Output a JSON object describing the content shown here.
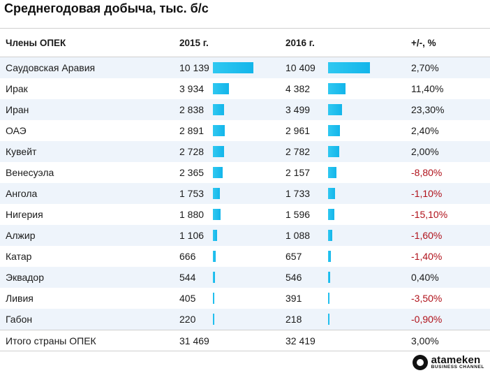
{
  "chart_data": {
    "type": "table",
    "title": "Среднегодовая добыча, тыс. б/с",
    "columns": [
      "Члены ОПЕК",
      "2015 г.",
      "2016 г.",
      "+/-, %"
    ],
    "rows": [
      {
        "country": "Саудовская Аравия",
        "y2015": "10 139",
        "v2015": 10139,
        "y2016": "10 409",
        "v2016": 10409,
        "change": "2,70%",
        "negative": false
      },
      {
        "country": "Ирак",
        "y2015": "3 934",
        "v2015": 3934,
        "y2016": "4 382",
        "v2016": 4382,
        "change": "11,40%",
        "negative": false
      },
      {
        "country": "Иран",
        "y2015": "2 838",
        "v2015": 2838,
        "y2016": "3 499",
        "v2016": 3499,
        "change": "23,30%",
        "negative": false
      },
      {
        "country": "ОАЭ",
        "y2015": "2 891",
        "v2015": 2891,
        "y2016": "2 961",
        "v2016": 2961,
        "change": "2,40%",
        "negative": false
      },
      {
        "country": "Кувейт",
        "y2015": "2 728",
        "v2015": 2728,
        "y2016": "2 782",
        "v2016": 2782,
        "change": "2,00%",
        "negative": false
      },
      {
        "country": "Венесуэла",
        "y2015": "2 365",
        "v2015": 2365,
        "y2016": "2 157",
        "v2016": 2157,
        "change": "-8,80%",
        "negative": true
      },
      {
        "country": "Ангола",
        "y2015": "1 753",
        "v2015": 1753,
        "y2016": "1 733",
        "v2016": 1733,
        "change": "-1,10%",
        "negative": true
      },
      {
        "country": "Нигерия",
        "y2015": "1 880",
        "v2015": 1880,
        "y2016": "1 596",
        "v2016": 1596,
        "change": "-15,10%",
        "negative": true
      },
      {
        "country": "Алжир",
        "y2015": "1 106",
        "v2015": 1106,
        "y2016": "1 088",
        "v2016": 1088,
        "change": "-1,60%",
        "negative": true
      },
      {
        "country": "Катар",
        "y2015": "666",
        "v2015": 666,
        "y2016": "657",
        "v2016": 657,
        "change": "-1,40%",
        "negative": true
      },
      {
        "country": "Эквадор",
        "y2015": "544",
        "v2015": 544,
        "y2016": "546",
        "v2016": 546,
        "change": "0,40%",
        "negative": false
      },
      {
        "country": "Ливия",
        "y2015": "405",
        "v2015": 405,
        "y2016": "391",
        "v2016": 391,
        "change": "-3,50%",
        "negative": true
      },
      {
        "country": "Габон",
        "y2015": "220",
        "v2015": 220,
        "y2016": "218",
        "v2016": 218,
        "change": "-0,90%",
        "negative": true
      }
    ],
    "total": {
      "country": "Итого страны ОПЕК",
      "y2015": "31 469",
      "y2016": "32 419",
      "change": "3,00%"
    },
    "bar_color": "#13b5ea",
    "negative_color": "#b0121b",
    "stripe_color": "#eef4fb"
  },
  "brand": {
    "name": "atameken",
    "sub": "BUSINESS CHANNEL"
  }
}
